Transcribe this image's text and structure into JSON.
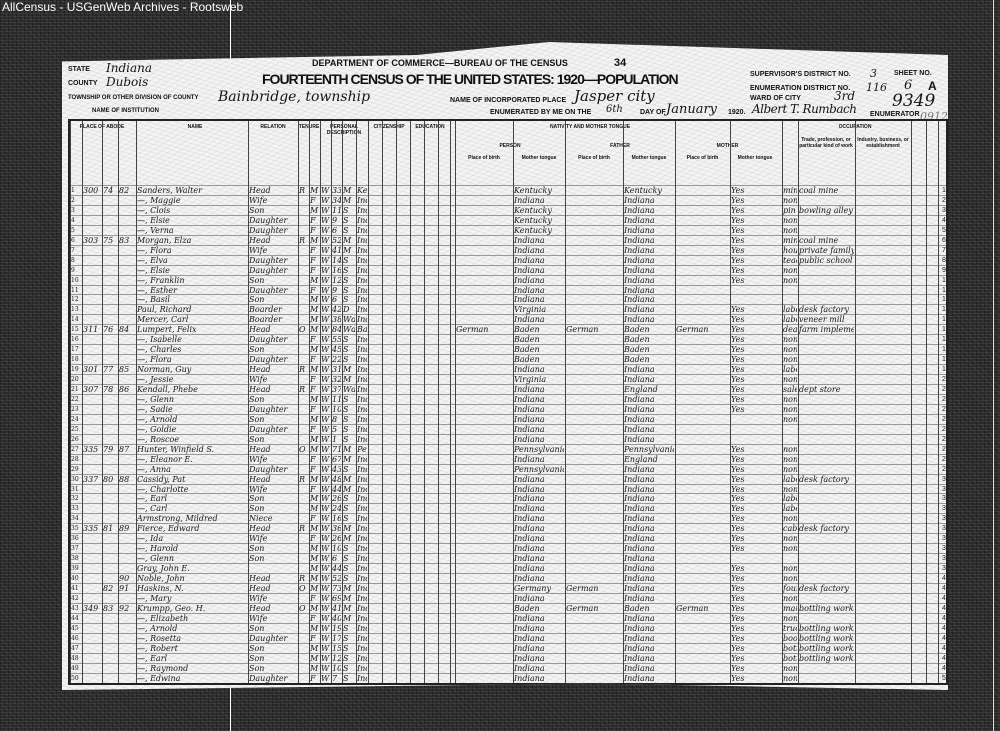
{
  "watermark": "AllCensus - USGenWeb Archives - Rootsweb",
  "form": {
    "department": "DEPARTMENT OF COMMERCE—BUREAU OF THE CENSUS",
    "page_number": "34",
    "title": "FOURTEENTH CENSUS OF THE UNITED STATES: 1920—POPULATION",
    "state_label": "STATE",
    "state": "Indiana",
    "county_label": "COUNTY",
    "county": "Dubois",
    "township_label": "TOWNSHIP OR OTHER DIVISION OF COUNTY",
    "township": "Bainbridge, township",
    "institution_label": "NAME OF INSTITUTION",
    "place_label": "NAME OF INCORPORATED PLACE",
    "place": "Jasper city",
    "enumerated_label": "ENUMERATED BY ME ON THE",
    "day": "6th",
    "day_of_label": "DAY OF",
    "month": "January",
    "year": "1920.",
    "enumerator": "Albert T. Rumbach",
    "enumerator_label": "ENUMERATOR",
    "supervisor_label": "SUPERVISOR'S DISTRICT NO.",
    "supervisor_no": "3",
    "ed_label": "ENUMERATION DISTRICT NO.",
    "ed_no": "116",
    "sheet_label": "SHEET NO.",
    "sheet_no": "6",
    "sheet_side": "A",
    "ward_label": "WARD OF CITY",
    "ward": "3rd",
    "stamp": "9349",
    "stamp2": "0912"
  },
  "columns": {
    "place_of_abode": "PLACE OF ABODE",
    "name": "NAME",
    "relation": "RELATION",
    "tenure": "TENURE",
    "personal": "PERSONAL DESCRIPTION",
    "citizenship": "CITIZENSHIP",
    "education": "EDUCATION",
    "nativity": "NATIVITY AND MOTHER TONGUE",
    "person": "PERSON",
    "father": "FATHER",
    "mother": "MOTHER",
    "place_of_birth": "Place of birth",
    "mother_tongue": "Mother tongue",
    "occupation": "OCCUPATION",
    "trade": "Trade, profession, or particular kind of work",
    "industry": "Industry, business, or establishment"
  },
  "rows": [
    [
      "300",
      "74",
      "82",
      "Sanders, Walter",
      "Head",
      "R",
      "M",
      "W",
      "33",
      "M",
      "Kentucky",
      "",
      "Kentucky",
      "",
      "Kentucky",
      "",
      "Yes",
      "miner",
      "coal mine"
    ],
    [
      "",
      "",
      "",
      "—, Maggie",
      "Wife",
      "",
      "F",
      "W",
      "34",
      "M",
      "Indiana",
      "",
      "Indiana",
      "",
      "Indiana",
      "",
      "Yes",
      "none",
      ""
    ],
    [
      "",
      "",
      "",
      "—, Clois",
      "Son",
      "",
      "M",
      "W",
      "11",
      "S",
      "Indiana",
      "",
      "Kentucky",
      "",
      "Indiana",
      "",
      "Yes",
      "pin setter",
      "bowling alley"
    ],
    [
      "",
      "",
      "",
      "—, Elsie",
      "Daughter",
      "",
      "F",
      "W",
      "9",
      "S",
      "Indiana",
      "",
      "Kentucky",
      "",
      "Indiana",
      "",
      "Yes",
      "none",
      ""
    ],
    [
      "",
      "",
      "",
      "—, Verna",
      "Daughter",
      "",
      "F",
      "W",
      "6",
      "S",
      "Indiana",
      "",
      "Kentucky",
      "",
      "Indiana",
      "",
      "Yes",
      "none",
      ""
    ],
    [
      "303",
      "75",
      "83",
      "Morgan, Elza",
      "Head",
      "R",
      "M",
      "W",
      "52",
      "M",
      "Indiana",
      "",
      "Indiana",
      "",
      "Indiana",
      "",
      "Yes",
      "miner",
      "coal mine"
    ],
    [
      "",
      "",
      "",
      "—, Flora",
      "Wife",
      "",
      "F",
      "W",
      "41",
      "M",
      "Indiana",
      "",
      "Indiana",
      "",
      "Indiana",
      "",
      "Yes",
      "housekeeper",
      "private family"
    ],
    [
      "",
      "",
      "",
      "—, Elva",
      "Daughter",
      "",
      "F",
      "W",
      "14",
      "S",
      "Indiana",
      "",
      "Indiana",
      "",
      "Indiana",
      "",
      "Yes",
      "teacher",
      "public school"
    ],
    [
      "",
      "",
      "",
      "—, Elsie",
      "Daughter",
      "",
      "F",
      "W",
      "16",
      "S",
      "Indiana",
      "",
      "Indiana",
      "",
      "Indiana",
      "",
      "Yes",
      "none",
      ""
    ],
    [
      "",
      "",
      "",
      "—, Franklin",
      "Son",
      "",
      "M",
      "W",
      "12",
      "S",
      "Indiana",
      "",
      "Indiana",
      "",
      "Indiana",
      "",
      "Yes",
      "none",
      ""
    ],
    [
      "",
      "",
      "",
      "—, Esther",
      "Daughter",
      "",
      "F",
      "W",
      "9",
      "S",
      "Indiana",
      "",
      "Indiana",
      "",
      "Indiana",
      "",
      "",
      "",
      ""
    ],
    [
      "",
      "",
      "",
      "—, Basil",
      "Son",
      "",
      "M",
      "W",
      "6",
      "S",
      "Indiana",
      "",
      "Indiana",
      "",
      "Indiana",
      "",
      "",
      "",
      ""
    ],
    [
      "",
      "",
      "",
      "Paul, Richard",
      "Boarder",
      "",
      "M",
      "W",
      "42",
      "D",
      "Indiana",
      "",
      "Virginia",
      "",
      "Indiana",
      "",
      "Yes",
      "laborer",
      "desk factory"
    ],
    [
      "",
      "",
      "",
      "Mercer, Carl",
      "Boarder",
      "",
      "M",
      "W",
      "38",
      "Wd",
      "Indiana",
      "",
      "Indiana",
      "",
      "Indiana",
      "",
      "Yes",
      "laborer",
      "veneer mill"
    ],
    [
      "311",
      "76",
      "84",
      "Lumpert, Felix",
      "Head",
      "O",
      "M",
      "W",
      "84",
      "Wd",
      "Baden",
      "German",
      "Baden",
      "German",
      "Baden",
      "German",
      "Yes",
      "dealer",
      "farm implements"
    ],
    [
      "",
      "",
      "",
      "—, Isabelle",
      "Daughter",
      "",
      "F",
      "W",
      "55",
      "S",
      "Indiana",
      "",
      "Baden",
      "",
      "Baden",
      "",
      "Yes",
      "none",
      ""
    ],
    [
      "",
      "",
      "",
      "—, Charles",
      "Son",
      "",
      "M",
      "W",
      "45",
      "S",
      "Indiana",
      "",
      "Baden",
      "",
      "Baden",
      "",
      "Yes",
      "none",
      ""
    ],
    [
      "",
      "",
      "",
      "—, Flora",
      "Daughter",
      "",
      "F",
      "W",
      "22",
      "S",
      "Indiana",
      "",
      "Baden",
      "",
      "Baden",
      "",
      "Yes",
      "none",
      ""
    ],
    [
      "301",
      "77",
      "85",
      "Norman, Guy",
      "Head",
      "R",
      "M",
      "W",
      "31",
      "M",
      "Indiana",
      "",
      "Indiana",
      "",
      "Indiana",
      "",
      "Yes",
      "laborer",
      ""
    ],
    [
      "",
      "",
      "",
      "—, Jessie",
      "Wife",
      "",
      "F",
      "W",
      "32",
      "M",
      "Indiana",
      "",
      "Virginia",
      "",
      "Indiana",
      "",
      "Yes",
      "none",
      ""
    ],
    [
      "307",
      "78",
      "86",
      "Kendall, Phebe",
      "Head",
      "R",
      "F",
      "W",
      "37",
      "Wd",
      "Indiana",
      "",
      "Indiana",
      "",
      "England",
      "",
      "Yes",
      "saleswoman",
      "dept store"
    ],
    [
      "",
      "",
      "",
      "—, Glenn",
      "Son",
      "",
      "M",
      "W",
      "11",
      "S",
      "Indiana",
      "",
      "Indiana",
      "",
      "Indiana",
      "",
      "Yes",
      "none",
      ""
    ],
    [
      "",
      "",
      "",
      "—, Sadie",
      "Daughter",
      "",
      "F",
      "W",
      "10",
      "S",
      "Indiana",
      "",
      "Indiana",
      "",
      "Indiana",
      "",
      "Yes",
      "none",
      ""
    ],
    [
      "",
      "",
      "",
      "—, Arnold",
      "Son",
      "",
      "M",
      "W",
      "8",
      "S",
      "Indiana",
      "",
      "Indiana",
      "",
      "Indiana",
      "",
      "",
      "none",
      ""
    ],
    [
      "",
      "",
      "",
      "—, Goldie",
      "Daughter",
      "",
      "F",
      "W",
      "5",
      "S",
      "Indiana",
      "",
      "Indiana",
      "",
      "Indiana",
      "",
      "",
      "",
      ""
    ],
    [
      "",
      "",
      "",
      "—, Roscoe",
      "Son",
      "",
      "M",
      "W",
      "1",
      "S",
      "Indiana",
      "",
      "Indiana",
      "",
      "Indiana",
      "",
      "",
      "",
      ""
    ],
    [
      "335",
      "79",
      "87",
      "Hunter, Winfield S.",
      "Head",
      "O",
      "M",
      "W",
      "71",
      "M",
      "Pennsylvania",
      "",
      "Pennsylvania",
      "",
      "Pennsylvania",
      "",
      "Yes",
      "none",
      ""
    ],
    [
      "",
      "",
      "",
      "—, Eleanor E.",
      "Wife",
      "",
      "F",
      "W",
      "67",
      "M",
      "Indiana",
      "",
      "Indiana",
      "",
      "England",
      "",
      "Yes",
      "none",
      ""
    ],
    [
      "",
      "",
      "",
      "—, Anna",
      "Daughter",
      "",
      "F",
      "W",
      "43",
      "S",
      "Indiana",
      "",
      "Pennsylvania",
      "",
      "Indiana",
      "",
      "Yes",
      "none",
      ""
    ],
    [
      "337",
      "80",
      "88",
      "Cassidy, Pat",
      "Head",
      "R",
      "M",
      "W",
      "48",
      "M",
      "Indiana",
      "",
      "Indiana",
      "",
      "Indiana",
      "",
      "Yes",
      "laborer",
      "desk factory"
    ],
    [
      "",
      "",
      "",
      "—, Charlotte",
      "Wife",
      "",
      "F",
      "W",
      "44",
      "M",
      "Indiana",
      "",
      "Indiana",
      "",
      "Indiana",
      "",
      "Yes",
      "none",
      ""
    ],
    [
      "",
      "",
      "",
      "—, Earl",
      "Son",
      "",
      "M",
      "W",
      "26",
      "S",
      "Indiana",
      "",
      "Indiana",
      "",
      "Indiana",
      "",
      "Yes",
      "laborer",
      ""
    ],
    [
      "",
      "",
      "",
      "—, Carl",
      "Son",
      "",
      "M",
      "W",
      "24",
      "S",
      "Indiana",
      "",
      "Indiana",
      "",
      "Indiana",
      "",
      "Yes",
      "laborer",
      ""
    ],
    [
      "",
      "",
      "",
      "Armstrong, Mildred",
      "Niece",
      "",
      "F",
      "W",
      "16",
      "S",
      "Indiana",
      "",
      "Indiana",
      "",
      "Indiana",
      "",
      "Yes",
      "none",
      ""
    ],
    [
      "335",
      "81",
      "89",
      "Fierce, Edward",
      "Head",
      "R",
      "M",
      "W",
      "36",
      "M",
      "Indiana",
      "",
      "Indiana",
      "",
      "Indiana",
      "",
      "Yes",
      "cabinetmaker",
      "desk factory"
    ],
    [
      "",
      "",
      "",
      "—, Ida",
      "Wife",
      "",
      "F",
      "W",
      "26",
      "M",
      "Indiana",
      "",
      "Indiana",
      "",
      "Indiana",
      "",
      "Yes",
      "none",
      ""
    ],
    [
      "",
      "",
      "",
      "—, Harold",
      "Son",
      "",
      "M",
      "W",
      "10",
      "S",
      "Indiana",
      "",
      "Indiana",
      "",
      "Indiana",
      "",
      "Yes",
      "none",
      ""
    ],
    [
      "",
      "",
      "",
      "—, Glenn",
      "Son",
      "",
      "M",
      "W",
      "6",
      "S",
      "Indiana",
      "",
      "Indiana",
      "",
      "Indiana",
      "",
      "",
      "",
      ""
    ],
    [
      "",
      "",
      "",
      "Gray, John E.",
      "",
      "",
      "M",
      "W",
      "44",
      "S",
      "Indiana",
      "",
      "Indiana",
      "",
      "Indiana",
      "",
      "Yes",
      "none",
      ""
    ],
    [
      "",
      "",
      "90",
      "Noble, John",
      "Head",
      "R",
      "M",
      "W",
      "52",
      "S",
      "Indiana",
      "",
      "Indiana",
      "",
      "Indiana",
      "",
      "Yes",
      "none",
      ""
    ],
    [
      "",
      "82",
      "91",
      "Haskins, N.",
      "Head",
      "O",
      "M",
      "W",
      "73",
      "M",
      "Indiana",
      "",
      "Germany",
      "German",
      "Indiana",
      "",
      "Yes",
      "foundry",
      "desk factory"
    ],
    [
      "",
      "",
      "",
      "—, Mary",
      "Wife",
      "",
      "F",
      "W",
      "69",
      "M",
      "Indiana",
      "",
      "Indiana",
      "",
      "Indiana",
      "",
      "Yes",
      "none",
      ""
    ],
    [
      "349",
      "83",
      "92",
      "Krumpp, Geo. H.",
      "Head",
      "O",
      "M",
      "W",
      "41",
      "M",
      "Indiana",
      "",
      "Baden",
      "German",
      "Baden",
      "German",
      "Yes",
      "manager",
      "bottling works"
    ],
    [
      "",
      "",
      "",
      "—, Elizabeth",
      "Wife",
      "",
      "F",
      "W",
      "40",
      "M",
      "Indiana",
      "",
      "Indiana",
      "",
      "Indiana",
      "",
      "Yes",
      "none",
      ""
    ],
    [
      "",
      "",
      "",
      "—, Arnold",
      "Son",
      "",
      "M",
      "W",
      "19",
      "S",
      "Indiana",
      "",
      "Indiana",
      "",
      "Indiana",
      "",
      "Yes",
      "truck driver",
      "bottling works"
    ],
    [
      "",
      "",
      "",
      "—, Rosetta",
      "Daughter",
      "",
      "F",
      "W",
      "17",
      "S",
      "Indiana",
      "",
      "Indiana",
      "",
      "Indiana",
      "",
      "Yes",
      "book keeper",
      "bottling works"
    ],
    [
      "",
      "",
      "",
      "—, Robert",
      "Son",
      "",
      "M",
      "W",
      "15",
      "S",
      "Indiana",
      "",
      "Indiana",
      "",
      "Indiana",
      "",
      "Yes",
      "bottle washer",
      "bottling works"
    ],
    [
      "",
      "",
      "",
      "—, Earl",
      "Son",
      "",
      "M",
      "W",
      "12",
      "S",
      "Indiana",
      "",
      "Indiana",
      "",
      "Indiana",
      "",
      "Yes",
      "bottle washer",
      "bottling works"
    ],
    [
      "",
      "",
      "",
      "—, Raymond",
      "Son",
      "",
      "M",
      "W",
      "10",
      "S",
      "Indiana",
      "",
      "Indiana",
      "",
      "Indiana",
      "",
      "Yes",
      "none",
      ""
    ],
    [
      "",
      "",
      "",
      "—, Edwina",
      "Daughter",
      "",
      "F",
      "W",
      "7",
      "S",
      "Indiana",
      "",
      "Indiana",
      "",
      "Indiana",
      "",
      "Yes",
      "none",
      ""
    ]
  ]
}
